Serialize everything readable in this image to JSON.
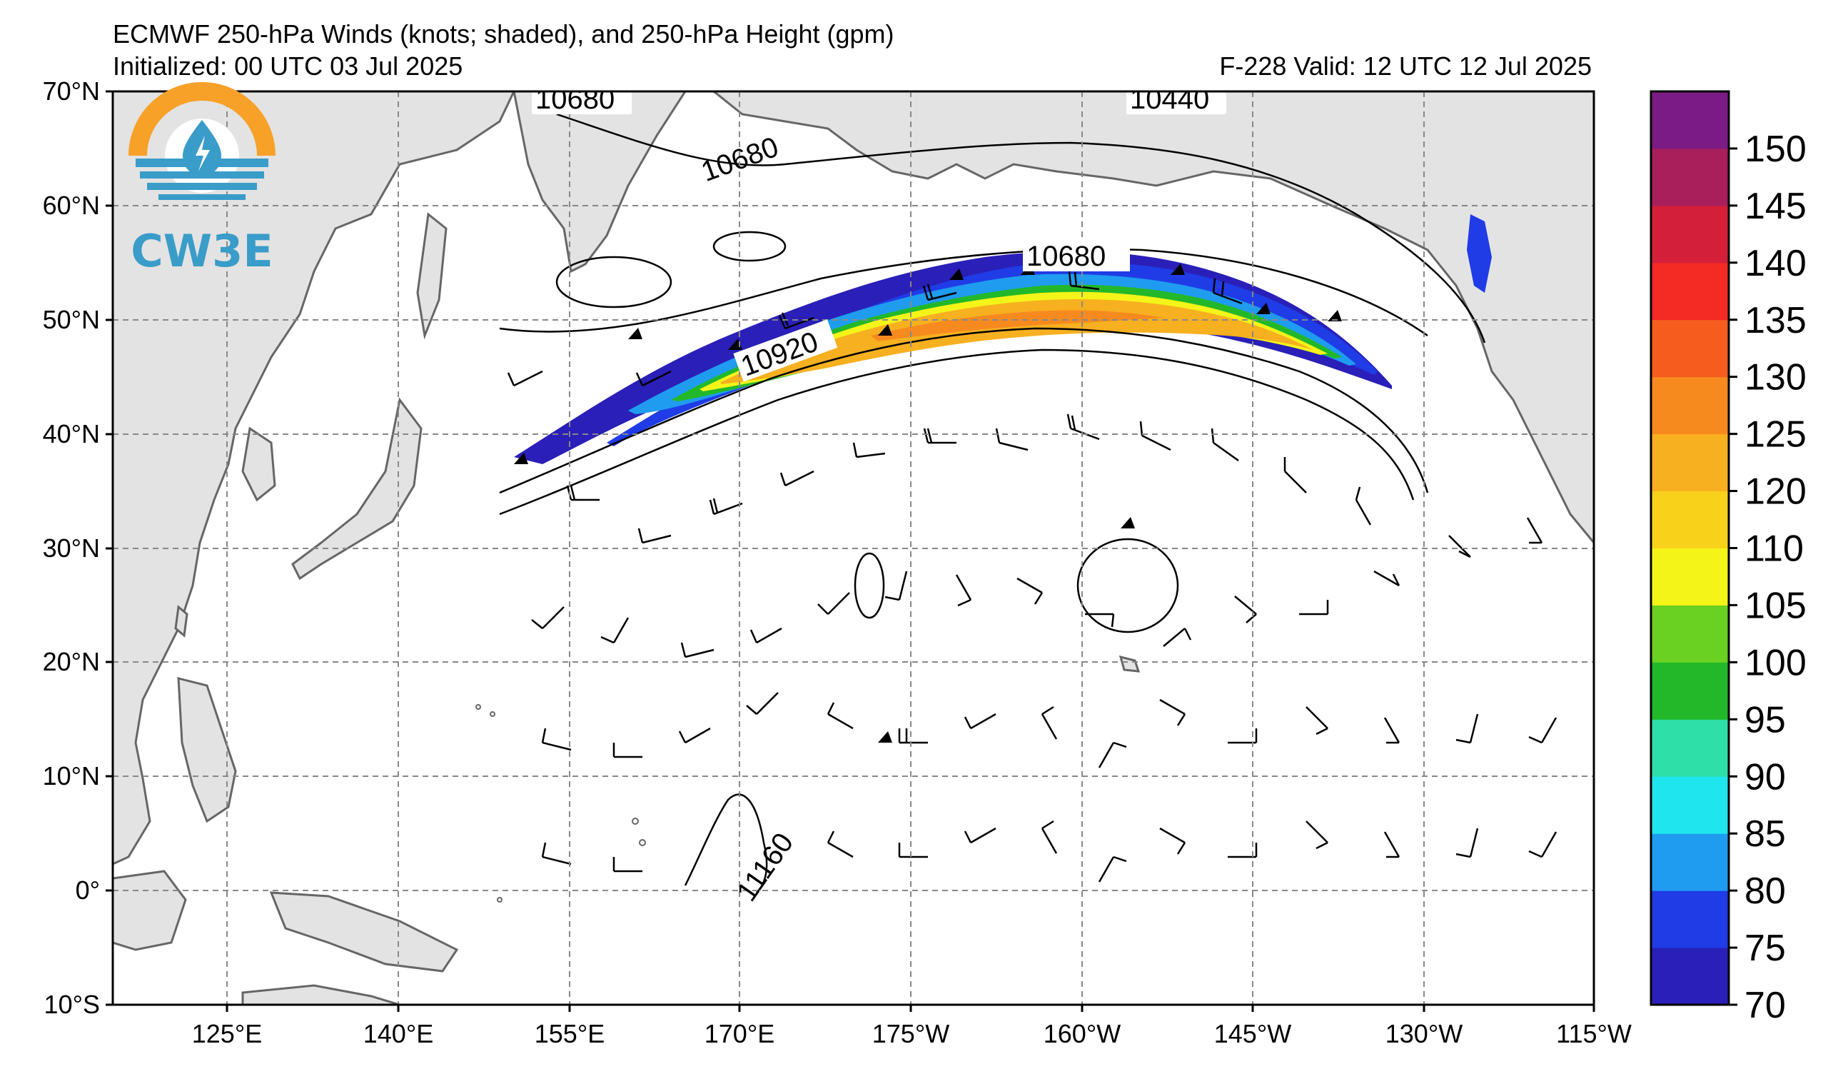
{
  "title": {
    "line1": "ECMWF 250-hPa Winds (knots; shaded), and 250-hPa Height (gpm)",
    "line2_left": "Initialized: 00 UTC 03 Jul 2025",
    "line2_right": "F-228  Valid: 12 UTC 12 Jul 2025"
  },
  "logo": {
    "text": "CW3E",
    "icon": "water-drop-lightning-icon"
  },
  "axes": {
    "lat_labels": [
      "70°N",
      "60°N",
      "50°N",
      "40°N",
      "30°N",
      "20°N",
      "10°N",
      "0°",
      "10°S"
    ],
    "lon_labels": [
      "125°E",
      "140°E",
      "155°E",
      "170°E",
      "175°W",
      "160°W",
      "145°W",
      "130°W",
      "115°W"
    ],
    "lat_range": [
      -10,
      70
    ],
    "lon_range_east": [
      110,
      245
    ]
  },
  "contour_labels": [
    "10680",
    "10440",
    "10680",
    "10680",
    "10920",
    "11160"
  ],
  "colorbar": {
    "ticks": [
      "150",
      "145",
      "140",
      "135",
      "130",
      "125",
      "120",
      "110",
      "105",
      "100",
      "95",
      "90",
      "85",
      "80",
      "75",
      "70"
    ],
    "colors": [
      "#2a1fb8",
      "#1f3ce6",
      "#1f9cf0",
      "#1fe6ee",
      "#2ee0a8",
      "#22b82a",
      "#6ad022",
      "#f4f419",
      "#f8d21a",
      "#f7b01f",
      "#f78a1f",
      "#f75c1f",
      "#f42a24",
      "#d41f3a",
      "#a81f5c",
      "#7b1c86"
    ],
    "accent_colors": {
      "jet_core": "#f7b01f",
      "jet_edge": "#1f3ce6",
      "land": "#e3e3e3",
      "coast": "#666666"
    }
  },
  "chart_data": {
    "type": "heatmap",
    "variable": "250-hPa wind speed (knots)",
    "jet_stream": {
      "path_latlon": [
        [
          38,
          151
        ],
        [
          39,
          156
        ],
        [
          44,
          166
        ],
        [
          48,
          178
        ],
        [
          51,
          190
        ],
        [
          52,
          200
        ],
        [
          51,
          210
        ],
        [
          49,
          220
        ],
        [
          45,
          232
        ]
      ],
      "core_speed_range_kt": [
        110,
        130
      ],
      "min_shaded_kt": 70
    },
    "height_contours_gpm": [
      10440,
      10680,
      10920,
      11160
    ],
    "colorbar_range": [
      70,
      155
    ]
  }
}
